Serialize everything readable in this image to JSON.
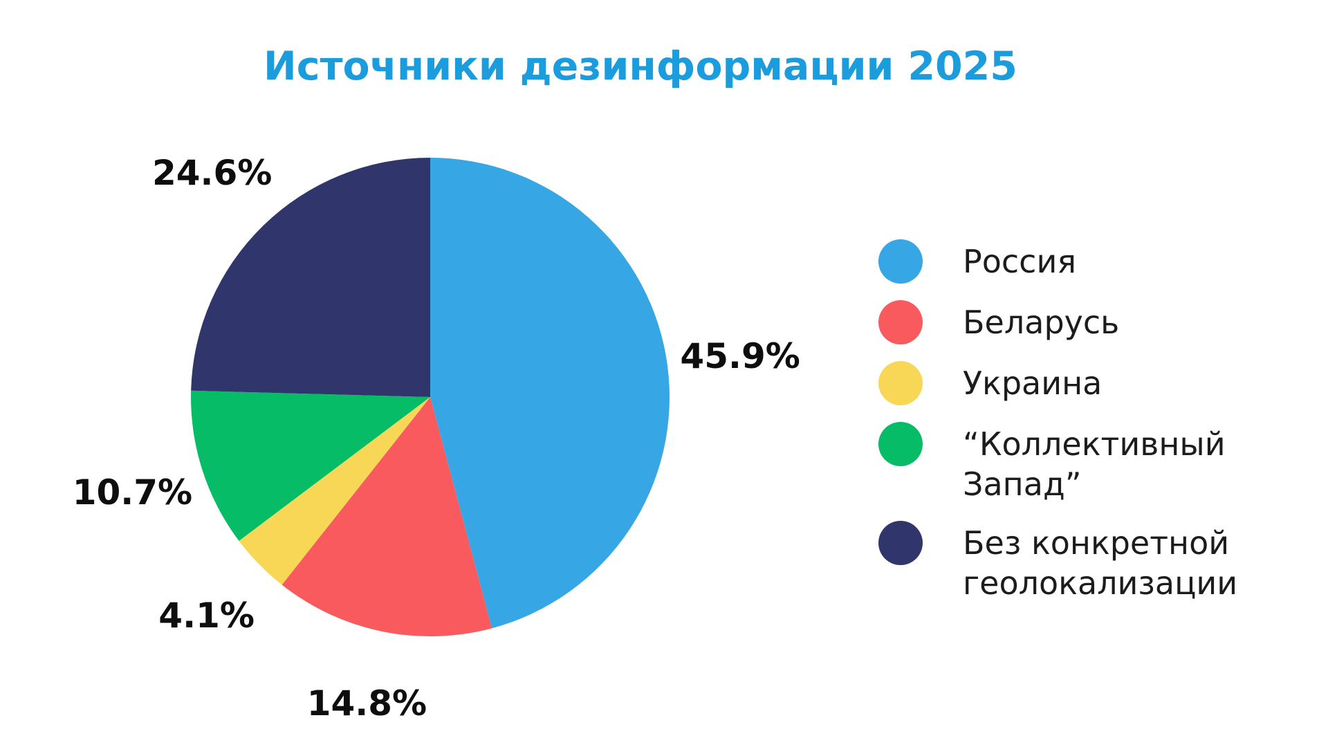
{
  "title": "Источники дезинформации 2025",
  "colors": {
    "title": "#1B9CDD",
    "percent_label_text": "#0E0E0E",
    "legend_text": "#1C1C1C",
    "background": "#FFFFFF"
  },
  "chart_data": {
    "type": "pie",
    "title": "Источники дезинформации 2025",
    "legend_position": "right",
    "start_angle_deg": 0,
    "direction": "clockwise",
    "value_labels": "outside",
    "slices": [
      {
        "label": "Россия",
        "value": 45.9,
        "display": "45.9%",
        "color": "#36A6E5"
      },
      {
        "label": "Беларусь",
        "value": 14.8,
        "display": "14.8%",
        "color": "#F85A5D"
      },
      {
        "label": "Украина",
        "value": 4.1,
        "display": "4.1%",
        "color": "#F9D756"
      },
      {
        "label": "“Коллективный Запад”",
        "value": 10.7,
        "display": "10.7%",
        "color": "#06BC67"
      },
      {
        "label": "Без конкретной геолокализации",
        "value": 24.6,
        "display": "24.6%",
        "color": "#30366B",
        "legend_lines": [
          "Без конкретной",
          "геолокализации"
        ]
      }
    ]
  }
}
